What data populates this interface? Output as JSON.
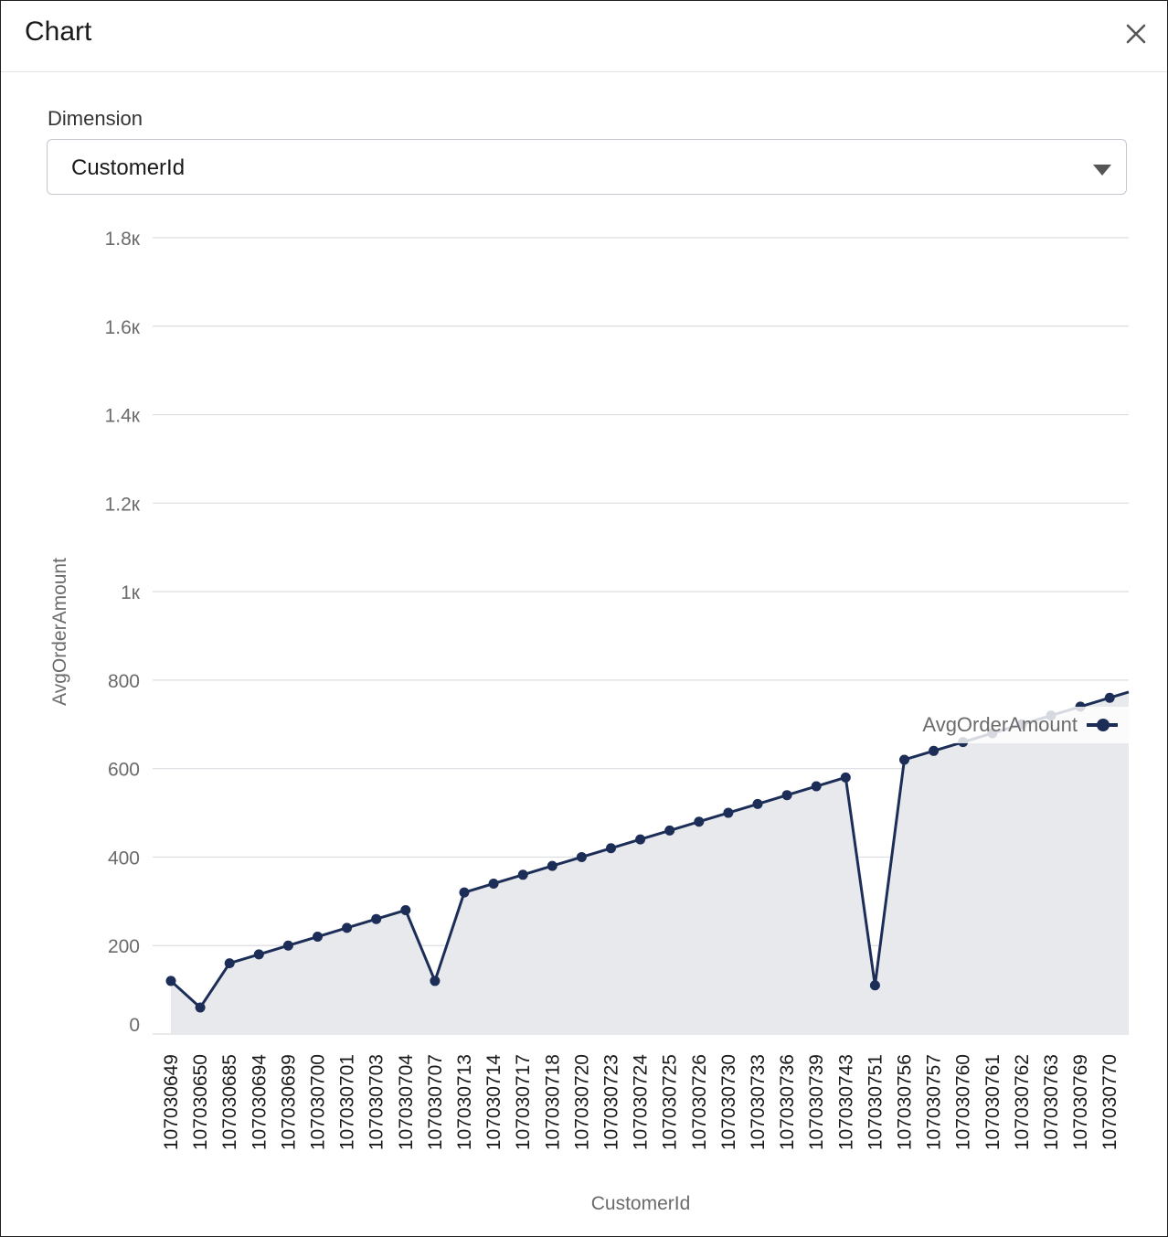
{
  "dialog": {
    "title": "Chart"
  },
  "dimension": {
    "label": "Dimension",
    "value": "CustomerId"
  },
  "chart_data": {
    "type": "area",
    "xlabel": "CustomerId",
    "ylabel": "AvgOrderAmount",
    "ylim": [
      0,
      1800
    ],
    "yticks": [
      "0",
      "200",
      "400",
      "600",
      "800",
      "1к",
      "1.2к",
      "1.4к",
      "1.6к",
      "1.8к"
    ],
    "ytick_values": [
      0,
      200,
      400,
      600,
      800,
      1000,
      1200,
      1400,
      1600,
      1800
    ],
    "grid": true,
    "legend": "right",
    "categories": [
      "107030649",
      "107030650",
      "107030685",
      "107030694",
      "107030699",
      "107030700",
      "107030701",
      "107030703",
      "107030704",
      "107030707",
      "107030713",
      "107030714",
      "107030717",
      "107030718",
      "107030720",
      "107030723",
      "107030724",
      "107030725",
      "107030726",
      "107030730",
      "107030733",
      "107030736",
      "107030739",
      "107030743",
      "107030751",
      "107030756",
      "107030757",
      "107030760",
      "107030761",
      "107030762",
      "107030763",
      "107030769",
      "107030770"
    ],
    "series": [
      {
        "name": "AvgOrderAmount",
        "color": "#1c2e57",
        "values": [
          120,
          60,
          160,
          180,
          200,
          220,
          240,
          260,
          280,
          120,
          320,
          340,
          360,
          380,
          400,
          420,
          440,
          460,
          480,
          500,
          520,
          540,
          560,
          580,
          110,
          620,
          640,
          660,
          680,
          700,
          720,
          740,
          760
        ]
      }
    ]
  }
}
